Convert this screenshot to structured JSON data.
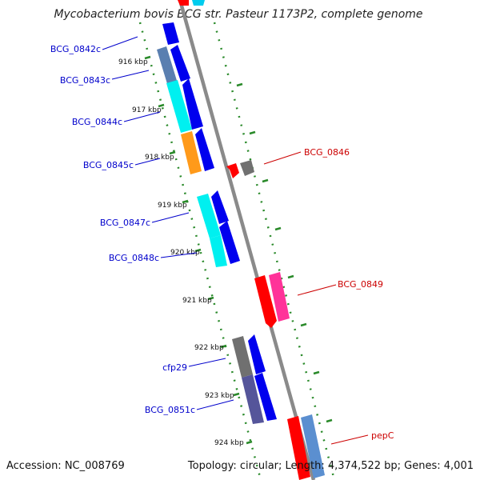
{
  "header": {
    "title": "Mycobacterium bovis BCG str. Pasteur 1173P2, complete genome"
  },
  "footer": {
    "accession": "Accession: NC_008769",
    "topology": "Topology: circular; Length: 4,374,522 bp; Genes: 4,001"
  },
  "map": {
    "kbp_ticks": [
      {
        "label": "916 kbp"
      },
      {
        "label": "917 kbp"
      },
      {
        "label": "918 kbp"
      },
      {
        "label": "919 kbp"
      },
      {
        "label": "920 kbp"
      },
      {
        "label": "921 kbp"
      },
      {
        "label": "922 kbp"
      },
      {
        "label": "923 kbp"
      },
      {
        "label": "924 kbp"
      }
    ],
    "gene_labels": [
      {
        "name": "BCG_0842c",
        "strand": "reverse",
        "color": "#0000cc"
      },
      {
        "name": "BCG_0843c",
        "strand": "reverse",
        "color": "#0000cc"
      },
      {
        "name": "BCG_0844c",
        "strand": "reverse",
        "color": "#0000cc"
      },
      {
        "name": "BCG_0845c",
        "strand": "reverse",
        "color": "#0000cc"
      },
      {
        "name": "BCG_0847c",
        "strand": "reverse",
        "color": "#0000cc"
      },
      {
        "name": "BCG_0848c",
        "strand": "reverse",
        "color": "#0000cc"
      },
      {
        "name": "cfp29",
        "strand": "reverse",
        "color": "#0000cc"
      },
      {
        "name": "BCG_0851c",
        "strand": "reverse",
        "color": "#0000cc"
      },
      {
        "name": "BCG_0846",
        "strand": "forward",
        "color": "#cc0000"
      },
      {
        "name": "BCG_0849",
        "strand": "forward",
        "color": "#cc0000"
      },
      {
        "name": "pepC",
        "strand": "forward",
        "color": "#cc0000"
      }
    ],
    "colors": {
      "backbone": "#888888",
      "dotted_track": "#2a8a2a",
      "cds_forward": "#ff0000",
      "cds_reverse": "#0000ee",
      "cog_cyan": "#00f0f0",
      "cog_steelblue": "#5a7fb0",
      "cog_orange": "#ff9a1a",
      "cog_gray": "#707070",
      "cog_pink": "#ff3399",
      "cog_slate": "#55559a",
      "cog_lightblue": "#5b8fd0"
    }
  }
}
